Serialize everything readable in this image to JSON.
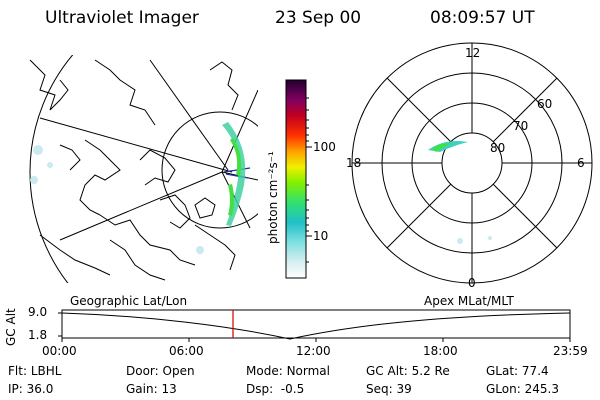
{
  "header": {
    "instrument": "Ultraviolet Imager",
    "date": "23 Sep 00",
    "time": "08:09:57 UT"
  },
  "colorbar": {
    "unit_label": "photon cm⁻²s⁻¹",
    "ticks": [
      "100",
      "10"
    ]
  },
  "polar_plot": {
    "mlt_labels": {
      "top": "12",
      "right": "6",
      "bottom": "0",
      "left": "18"
    },
    "lat_labels": [
      "60",
      "70",
      "80"
    ]
  },
  "orbit_panel": {
    "left_title": "Geographic Lat/Lon",
    "right_title": "Apex MLat/MLT",
    "ylabel": "GC Alt",
    "y_ticks": [
      "9.0",
      "1.8"
    ],
    "time_ticks": [
      "00:00",
      "06:00",
      "12:00",
      "18:00",
      "23:59"
    ],
    "current_marker_time": "08:09:57",
    "marker_color": "#cc0000"
  },
  "info": {
    "row1": [
      {
        "label": "Flt:",
        "value": "LBHL"
      },
      {
        "label": "Door:",
        "value": "Open"
      },
      {
        "label": "Mode:",
        "value": "Normal"
      },
      {
        "label": "GC Alt:",
        "value": "5.2 Re"
      },
      {
        "label": "GLat:",
        "value": "77.4"
      }
    ],
    "row2": [
      {
        "label": "IP:",
        "value": "36.0"
      },
      {
        "label": "Gain:",
        "value": "13"
      },
      {
        "label": "Dsp:",
        "value": "-0.5"
      },
      {
        "label": "Seq:",
        "value": "39"
      },
      {
        "label": "GLon:",
        "value": "245.3"
      }
    ]
  }
}
